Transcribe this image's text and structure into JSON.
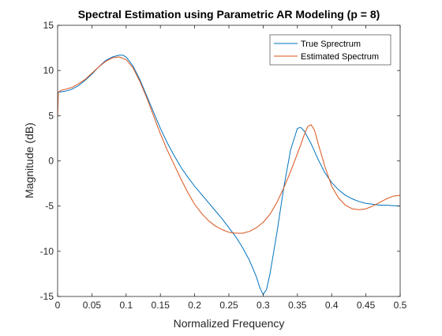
{
  "chart_data": {
    "type": "line",
    "title": "Spectral Estimation using Parametric AR Modeling (p = 8)",
    "xlabel": "Normalized Frequency",
    "ylabel": "Magnitude (dB)",
    "xlim": [
      0,
      0.5
    ],
    "ylim": [
      -15,
      15
    ],
    "xticks": [
      0,
      0.05,
      0.1,
      0.15,
      0.2,
      0.25,
      0.3,
      0.35,
      0.4,
      0.45,
      0.5
    ],
    "xtick_labels": [
      "0",
      "0.05",
      "0.1",
      "0.15",
      "0.2",
      "0.25",
      "0.3",
      "0.35",
      "0.4",
      "0.45",
      "0.5"
    ],
    "yticks": [
      -15,
      -10,
      -5,
      0,
      5,
      10,
      15
    ],
    "ytick_labels": [
      "-15",
      "-10",
      "-5",
      "0",
      "5",
      "10",
      "15"
    ],
    "grid": false,
    "legend_position": "top-right",
    "series": [
      {
        "name": "True Sprectrum",
        "color": "#0072BD",
        "x": [
          0,
          0.01,
          0.02,
          0.03,
          0.04,
          0.05,
          0.06,
          0.07,
          0.08,
          0.09,
          0.095,
          0.1,
          0.11,
          0.12,
          0.13,
          0.14,
          0.15,
          0.16,
          0.17,
          0.18,
          0.19,
          0.2,
          0.21,
          0.22,
          0.23,
          0.24,
          0.25,
          0.26,
          0.27,
          0.28,
          0.29,
          0.295,
          0.3,
          0.305,
          0.31,
          0.32,
          0.33,
          0.34,
          0.35,
          0.355,
          0.36,
          0.37,
          0.38,
          0.39,
          0.4,
          0.41,
          0.42,
          0.43,
          0.44,
          0.45,
          0.46,
          0.47,
          0.48,
          0.49,
          0.5
        ],
        "values": [
          7.6,
          7.7,
          7.9,
          8.3,
          8.9,
          9.6,
          10.4,
          11.1,
          11.5,
          11.7,
          11.7,
          11.5,
          10.5,
          9.0,
          7.2,
          5.4,
          3.6,
          2.0,
          0.6,
          -0.7,
          -1.8,
          -2.8,
          -3.7,
          -4.6,
          -5.5,
          -6.4,
          -7.4,
          -8.4,
          -9.6,
          -11.0,
          -12.8,
          -14.0,
          -14.8,
          -14.2,
          -12.5,
          -8.0,
          -3.0,
          1.2,
          3.6,
          3.7,
          3.3,
          1.9,
          0.2,
          -1.3,
          -2.4,
          -3.2,
          -3.8,
          -4.2,
          -4.5,
          -4.7,
          -4.8,
          -4.9,
          -4.9,
          -4.95,
          -5.0
        ]
      },
      {
        "name": "Estimated Spectrum",
        "color": "#D95319",
        "x": [
          0,
          0.001,
          0.005,
          0.01,
          0.02,
          0.03,
          0.04,
          0.05,
          0.06,
          0.07,
          0.08,
          0.09,
          0.1,
          0.11,
          0.12,
          0.13,
          0.14,
          0.15,
          0.16,
          0.17,
          0.18,
          0.19,
          0.2,
          0.21,
          0.22,
          0.23,
          0.24,
          0.25,
          0.26,
          0.27,
          0.28,
          0.29,
          0.3,
          0.31,
          0.32,
          0.33,
          0.34,
          0.35,
          0.355,
          0.36,
          0.365,
          0.37,
          0.375,
          0.38,
          0.39,
          0.4,
          0.41,
          0.42,
          0.43,
          0.44,
          0.45,
          0.46,
          0.47,
          0.48,
          0.49,
          0.5
        ],
        "values": [
          4.8,
          7.6,
          7.8,
          7.9,
          8.1,
          8.5,
          9.0,
          9.7,
          10.4,
          11.0,
          11.4,
          11.5,
          11.2,
          10.3,
          8.8,
          7.0,
          5.0,
          3.0,
          1.2,
          -0.4,
          -2.0,
          -3.5,
          -4.8,
          -5.8,
          -6.6,
          -7.2,
          -7.6,
          -7.9,
          -8.0,
          -8.0,
          -7.8,
          -7.4,
          -6.8,
          -5.9,
          -4.6,
          -3.0,
          -1.2,
          0.8,
          1.8,
          2.9,
          3.8,
          4.0,
          3.4,
          2.0,
          -0.6,
          -2.8,
          -4.1,
          -4.9,
          -5.3,
          -5.4,
          -5.3,
          -5.0,
          -4.6,
          -4.2,
          -3.9,
          -3.8
        ]
      }
    ]
  }
}
